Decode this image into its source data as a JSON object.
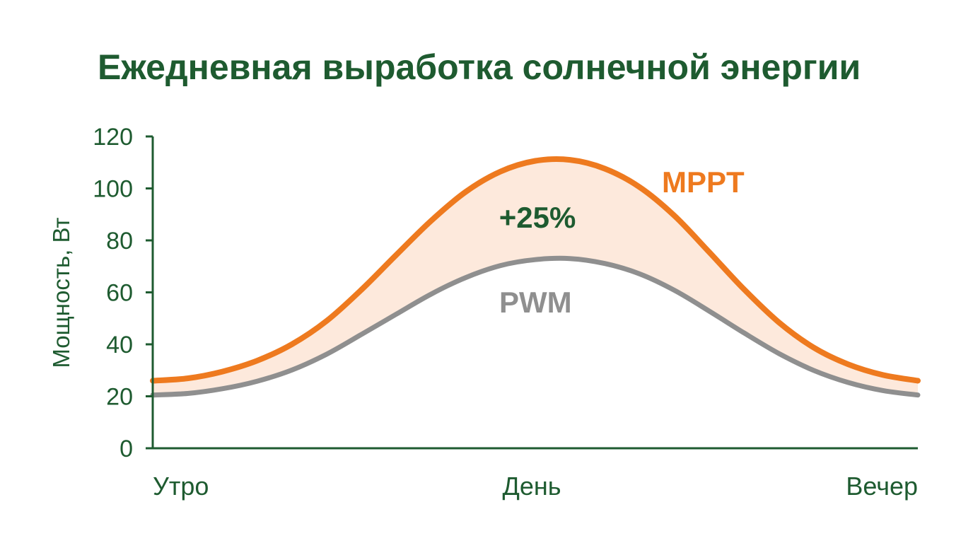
{
  "chart_data": {
    "type": "area",
    "title": "Ежедневная выработка солнечной энергии",
    "xlabel": "",
    "ylabel": "Мощность, Вт",
    "x_ticks": [
      "Утро",
      "День",
      "Вечер"
    ],
    "y_ticks": [
      "0",
      "20",
      "40",
      "60",
      "80",
      "100",
      "120"
    ],
    "ylim": [
      0,
      120
    ],
    "grid": false,
    "series": [
      {
        "name": "MPPT",
        "color": "#ee7a1f",
        "values": [
          26,
          26.9,
          29.5,
          33.7,
          40,
          49,
          61,
          74.4,
          87.5,
          98.7,
          106.5,
          110.6,
          111,
          107.6,
          100.5,
          89.5,
          75.5,
          61.2,
          48.5,
          38.8,
          32.3,
          28.2,
          26
        ]
      },
      {
        "name": "PWM",
        "color": "#8f8f8f",
        "values": [
          20.5,
          21.1,
          22.9,
          25.8,
          30.1,
          36.2,
          43.8,
          51.6,
          59.3,
          65.7,
          70.3,
          72.6,
          73,
          71.1,
          67.1,
          60.8,
          52.8,
          44.4,
          36.5,
          30,
          25.3,
          22.2,
          20.5
        ]
      }
    ],
    "annotations": [
      {
        "text": "+25%",
        "color": "#1e5b30"
      }
    ],
    "colors": {
      "axis": "#1e5b30",
      "fill_between": "#fde9dc"
    }
  }
}
